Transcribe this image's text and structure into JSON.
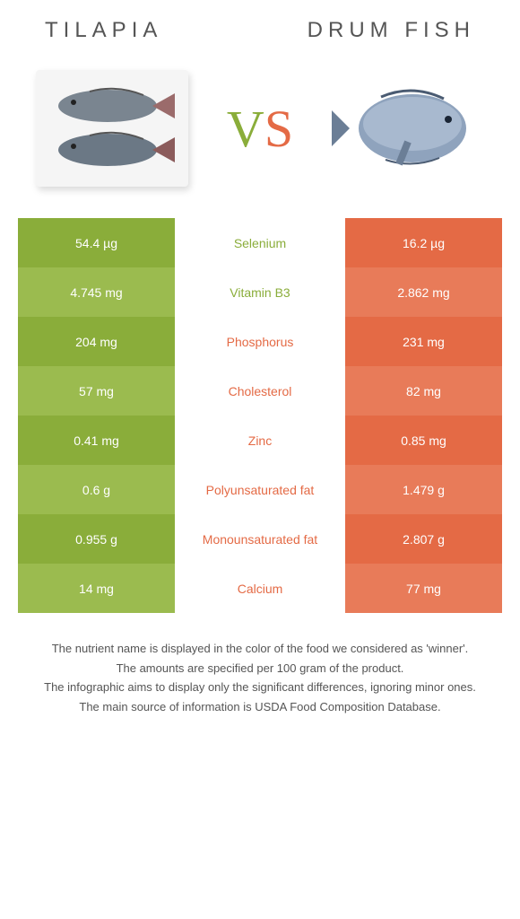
{
  "header": {
    "left_title": "TILAPIA",
    "right_title": "DRUM FISH"
  },
  "vs": {
    "v": "V",
    "s": "S"
  },
  "colors": {
    "green": "#8aad3a",
    "green_alt": "#9bbb4f",
    "orange": "#e46a45",
    "orange_alt": "#e87b59",
    "mid_bg": "#ffffff",
    "fish_body": "#7a8590",
    "fish_body2": "#6b7885",
    "drum_body": "#8fa3bd"
  },
  "table": {
    "rows": [
      {
        "left": "54.4 µg",
        "mid": "Selenium",
        "right": "16.2 µg",
        "winner": "left"
      },
      {
        "left": "4.745 mg",
        "mid": "Vitamin B3",
        "right": "2.862 mg",
        "winner": "left"
      },
      {
        "left": "204 mg",
        "mid": "Phosphorus",
        "right": "231 mg",
        "winner": "right"
      },
      {
        "left": "57 mg",
        "mid": "Cholesterol",
        "right": "82 mg",
        "winner": "right"
      },
      {
        "left": "0.41 mg",
        "mid": "Zinc",
        "right": "0.85 mg",
        "winner": "right"
      },
      {
        "left": "0.6 g",
        "mid": "Polyunsaturated fat",
        "right": "1.479 g",
        "winner": "right"
      },
      {
        "left": "0.955 g",
        "mid": "Monounsaturated fat",
        "right": "2.807 g",
        "winner": "right"
      },
      {
        "left": "14 mg",
        "mid": "Calcium",
        "right": "77 mg",
        "winner": "right"
      }
    ]
  },
  "footer": {
    "line1": "The nutrient name is displayed in the color of the food we considered as 'winner'.",
    "line2": "The amounts are specified per 100 gram of the product.",
    "line3": "The infographic aims to display only the significant differences, ignoring minor ones.",
    "line4": "The main source of information is USDA Food Composition Database."
  }
}
